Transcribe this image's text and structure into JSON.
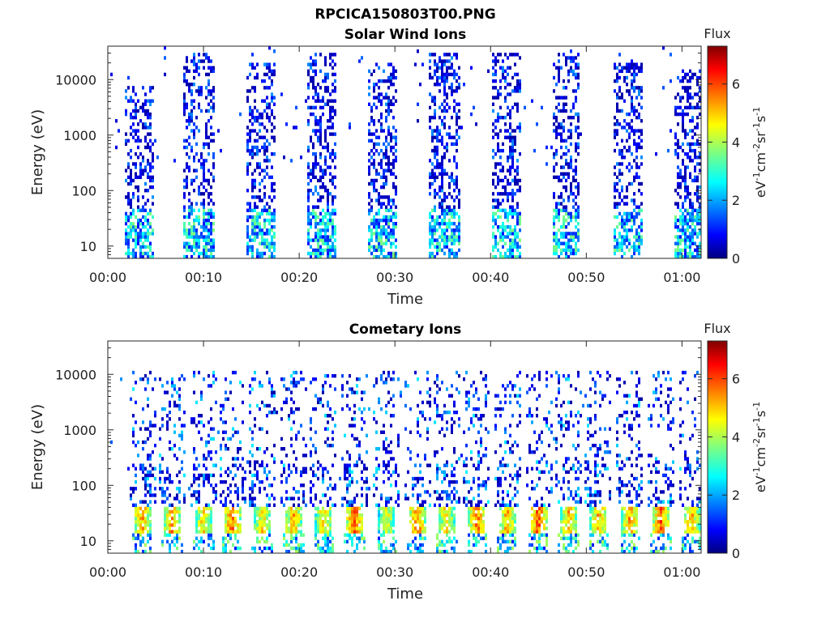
{
  "figure_title": "RPCICA150803T00.PNG",
  "chart_data": [
    {
      "type": "heatmap",
      "title": "Solar Wind Ions",
      "xlabel": "Time",
      "ylabel": "Energy (eV)",
      "x_ticks": [
        "00:00",
        "00:10",
        "00:20",
        "00:30",
        "00:40",
        "00:50",
        "01:00"
      ],
      "x_tick_minutes": [
        0,
        10,
        20,
        30,
        40,
        50,
        60
      ],
      "xlim_minutes": [
        0,
        62
      ],
      "y_scale": "log",
      "y_ticks": [
        "10",
        "100",
        "1000",
        "10000"
      ],
      "y_tick_values": [
        10,
        100,
        1000,
        10000
      ],
      "ylim": [
        6,
        40000
      ],
      "colorbar": {
        "title": "Flux",
        "label": "eV-1cm-2sr-1s-1",
        "range": [
          0,
          7.3
        ],
        "ticks": [
          "0",
          "2",
          "4",
          "6"
        ],
        "tick_values": [
          0,
          2,
          4,
          6
        ],
        "colormap": "jet"
      },
      "bursts": [
        {
          "center_min": 3.3,
          "width_min": 3.2,
          "max_energy_ev": 8000
        },
        {
          "center_min": 9.6,
          "width_min": 3.2,
          "max_energy_ev": 30000
        },
        {
          "center_min": 16.0,
          "width_min": 3.2,
          "max_energy_ev": 20000
        },
        {
          "center_min": 22.3,
          "width_min": 3.0,
          "max_energy_ev": 30000
        },
        {
          "center_min": 28.8,
          "width_min": 3.0,
          "max_energy_ev": 20000
        },
        {
          "center_min": 35.2,
          "width_min": 3.2,
          "max_energy_ev": 30000
        },
        {
          "center_min": 41.6,
          "width_min": 3.0,
          "max_energy_ev": 30000
        },
        {
          "center_min": 47.9,
          "width_min": 3.0,
          "max_energy_ev": 30000
        },
        {
          "center_min": 54.3,
          "width_min": 3.0,
          "max_energy_ev": 20000
        },
        {
          "center_min": 60.6,
          "width_min": 3.0,
          "max_energy_ev": 15000
        }
      ],
      "flux_description": "sparse flux 0.5-2 at high energies, 2-4 near 10-40 eV"
    },
    {
      "type": "heatmap",
      "title": "Cometary Ions",
      "xlabel": "Time",
      "ylabel": "Energy (eV)",
      "x_ticks": [
        "00:00",
        "00:10",
        "00:20",
        "00:30",
        "00:40",
        "00:50",
        "01:00"
      ],
      "x_tick_minutes": [
        0,
        10,
        20,
        30,
        40,
        50,
        60
      ],
      "xlim_minutes": [
        0,
        62
      ],
      "y_scale": "log",
      "y_ticks": [
        "10",
        "100",
        "1000",
        "10000"
      ],
      "y_tick_values": [
        10,
        100,
        1000,
        10000
      ],
      "ylim": [
        6,
        40000
      ],
      "colorbar": {
        "title": "Flux",
        "label": "eV-1cm-2sr-1s-1",
        "range": [
          0,
          7.3
        ],
        "ticks": [
          "0",
          "2",
          "4",
          "6"
        ],
        "tick_values": [
          0,
          2,
          4,
          6
        ],
        "colormap": "jet"
      },
      "bursts": [
        {
          "center_min": 3.6,
          "peak_flux": 6.0
        },
        {
          "center_min": 6.7,
          "peak_flux": 6.0
        },
        {
          "center_min": 10.0,
          "peak_flux": 5.5
        },
        {
          "center_min": 13.0,
          "peak_flux": 6.3
        },
        {
          "center_min": 16.2,
          "peak_flux": 5.5
        },
        {
          "center_min": 19.4,
          "peak_flux": 5.8
        },
        {
          "center_min": 22.6,
          "peak_flux": 5.5
        },
        {
          "center_min": 25.8,
          "peak_flux": 6.5
        },
        {
          "center_min": 29.2,
          "peak_flux": 5.0
        },
        {
          "center_min": 32.3,
          "peak_flux": 6.3
        },
        {
          "center_min": 35.4,
          "peak_flux": 5.5
        },
        {
          "center_min": 38.6,
          "peak_flux": 6.3
        },
        {
          "center_min": 41.7,
          "peak_flux": 5.8
        },
        {
          "center_min": 45.0,
          "peak_flux": 6.5
        },
        {
          "center_min": 48.2,
          "peak_flux": 5.8
        },
        {
          "center_min": 51.3,
          "peak_flux": 5.8
        },
        {
          "center_min": 54.6,
          "peak_flux": 6.0
        },
        {
          "center_min": 57.8,
          "peak_flux": 6.3
        },
        {
          "center_min": 61.0,
          "peak_flux": 5.8
        }
      ],
      "band_energy_ev": [
        14,
        40
      ],
      "flux_description": "intense 5-7 flux band at 14-40 eV; sparse 0.5-3 flux at higher energies"
    }
  ]
}
